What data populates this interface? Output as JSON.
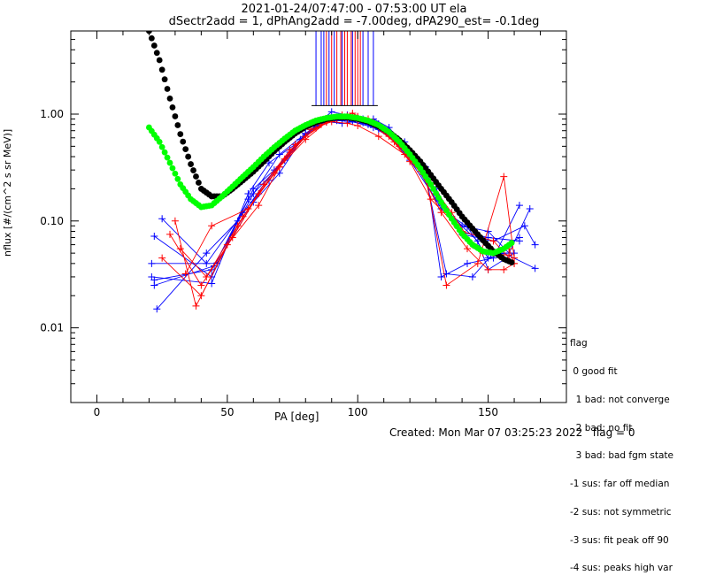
{
  "header": {
    "line1": "2021-01-24/07:47:00 - 07:53:00 UT ela",
    "line2": "dSectr2add = 1, dPhAng2add = -7.00deg, dPA290_est=  -0.1deg"
  },
  "footer": {
    "created": "Created: Mon Mar 07 03:25:23 2022",
    "flag": "flag = 0"
  },
  "legend": {
    "title": "flag",
    "items": [
      " 0 good fit",
      "  1 bad: not converge",
      "  2 bad: no fit",
      "  3 bad: bad fgm state",
      "-1 sus: far off median",
      "-2 sus: not symmetric",
      "-3 sus: fit peak off 90",
      "-4 sus: peaks high var"
    ]
  },
  "chart_data": {
    "type": "line",
    "title": "2021-01-24/07:47:00 - 07:53:00 UT ela",
    "subtitle": "dSectr2add = 1, dPhAng2add = -7.00deg, dPA290_est=  -0.1deg",
    "xlabel": "PA [deg]",
    "ylabel": "nflux [#/(cm^2 s sr MeV)]",
    "xlim": [
      -10,
      180
    ],
    "ylim": [
      0.002,
      6
    ],
    "yscale": "log",
    "xticks": [
      0,
      50,
      100,
      150
    ],
    "yticks": [
      0.01,
      0.1,
      1.0
    ],
    "yticklabels": [
      "0.01",
      "0.10",
      "1.00"
    ],
    "colors": {
      "red": "#ff0000",
      "blue": "#0000ff",
      "black": "#000000",
      "green": "#00ff00"
    },
    "fit_curves": [
      {
        "color": "black",
        "x": [
          20,
          24,
          28,
          32,
          36,
          40,
          44,
          48,
          52,
          56,
          60,
          64,
          68,
          72,
          76,
          80,
          84,
          88,
          92,
          96,
          100,
          104,
          108,
          112,
          116,
          120,
          124,
          128,
          132,
          136,
          140,
          144,
          148,
          152,
          156,
          160
        ],
        "y": [
          6.0,
          3.2,
          1.4,
          0.65,
          0.34,
          0.2,
          0.17,
          0.17,
          0.2,
          0.24,
          0.29,
          0.36,
          0.45,
          0.55,
          0.66,
          0.76,
          0.84,
          0.9,
          0.93,
          0.93,
          0.9,
          0.85,
          0.77,
          0.68,
          0.57,
          0.46,
          0.36,
          0.27,
          0.2,
          0.15,
          0.11,
          0.085,
          0.066,
          0.052,
          0.044,
          0.04
        ]
      },
      {
        "color": "green",
        "x": [
          20,
          24,
          28,
          32,
          36,
          40,
          44,
          48,
          52,
          56,
          60,
          64,
          68,
          72,
          76,
          80,
          84,
          88,
          92,
          96,
          100,
          104,
          108,
          112,
          116,
          120,
          124,
          128,
          132,
          136,
          140,
          144,
          148,
          152,
          156,
          160
        ],
        "y": [
          0.75,
          0.55,
          0.35,
          0.22,
          0.16,
          0.135,
          0.14,
          0.17,
          0.21,
          0.26,
          0.32,
          0.4,
          0.49,
          0.59,
          0.7,
          0.79,
          0.87,
          0.92,
          0.95,
          0.95,
          0.92,
          0.87,
          0.79,
          0.68,
          0.55,
          0.42,
          0.31,
          0.22,
          0.15,
          0.105,
          0.076,
          0.06,
          0.052,
          0.05,
          0.055,
          0.065
        ]
      }
    ],
    "series": [
      {
        "color": "blue",
        "x": [
          22,
          44,
          60,
          70,
          82,
          88,
          92,
          96,
          104,
          110,
          118,
          126,
          136,
          146,
          150,
          160
        ],
        "y": [
          0.028,
          0.035,
          0.18,
          0.42,
          0.72,
          0.85,
          0.88,
          0.86,
          0.8,
          0.7,
          0.48,
          0.28,
          0.11,
          0.065,
          0.035,
          0.05
        ]
      },
      {
        "color": "blue",
        "x": [
          22,
          44,
          58,
          72,
          84,
          90,
          94,
          98,
          102,
          108,
          116,
          124,
          132,
          140,
          150,
          162
        ],
        "y": [
          0.072,
          0.03,
          0.16,
          0.37,
          0.8,
          0.9,
          0.93,
          0.88,
          0.83,
          0.72,
          0.52,
          0.31,
          0.14,
          0.078,
          0.07,
          0.065
        ]
      },
      {
        "color": "blue",
        "x": [
          22,
          45,
          60,
          68,
          80,
          88,
          94,
          100,
          106,
          112,
          120,
          126,
          134,
          144,
          152,
          162
        ],
        "y": [
          0.025,
          0.038,
          0.2,
          0.3,
          0.65,
          0.85,
          0.82,
          0.86,
          0.9,
          0.75,
          0.44,
          0.26,
          0.032,
          0.03,
          0.05,
          0.07
        ]
      },
      {
        "color": "blue",
        "x": [
          25,
          42,
          56,
          66,
          78,
          86,
          92,
          98,
          104,
          112,
          120,
          130,
          140,
          150,
          158,
          166
        ],
        "y": [
          0.105,
          0.04,
          0.12,
          0.24,
          0.58,
          0.88,
          0.92,
          0.9,
          0.82,
          0.64,
          0.37,
          0.16,
          0.09,
          0.08,
          0.05,
          0.13
        ]
      },
      {
        "color": "blue",
        "x": [
          21,
          46,
          60,
          70,
          80,
          90,
          96,
          102,
          108,
          116,
          124,
          130,
          140,
          152,
          164,
          168
        ],
        "y": [
          0.04,
          0.04,
          0.15,
          0.28,
          0.66,
          0.92,
          0.95,
          0.9,
          0.81,
          0.57,
          0.31,
          0.2,
          0.075,
          0.065,
          0.09,
          0.06
        ]
      },
      {
        "color": "blue",
        "x": [
          23,
          42,
          54,
          64,
          74,
          84,
          92,
          98,
          106,
          114,
          122,
          132,
          142,
          150,
          156,
          168
        ],
        "y": [
          0.015,
          0.05,
          0.1,
          0.22,
          0.44,
          0.78,
          0.87,
          0.85,
          0.75,
          0.58,
          0.34,
          0.13,
          0.088,
          0.045,
          0.05,
          0.036
        ]
      },
      {
        "color": "blue",
        "x": [
          21,
          44,
          58,
          66,
          76,
          86,
          90,
          96,
          104,
          112,
          118,
          126,
          132,
          142,
          152,
          162
        ],
        "y": [
          0.03,
          0.026,
          0.18,
          0.35,
          0.52,
          0.88,
          1.05,
          0.98,
          0.82,
          0.65,
          0.55,
          0.32,
          0.03,
          0.04,
          0.045,
          0.14
        ]
      },
      {
        "color": "red",
        "x": [
          28,
          40,
          52,
          62,
          72,
          82,
          90,
          96,
          100,
          108,
          118,
          128,
          136,
          144,
          152,
          156
        ],
        "y": [
          0.075,
          0.025,
          0.07,
          0.18,
          0.38,
          0.72,
          0.85,
          0.82,
          0.78,
          0.62,
          0.42,
          0.22,
          0.12,
          0.06,
          0.05,
          0.045
        ]
      },
      {
        "color": "red",
        "x": [
          25,
          40,
          54,
          64,
          74,
          84,
          92,
          98,
          104,
          110,
          118,
          126,
          134,
          146,
          156,
          160
        ],
        "y": [
          0.045,
          0.02,
          0.09,
          0.22,
          0.46,
          0.74,
          0.92,
          0.98,
          0.9,
          0.72,
          0.48,
          0.26,
          0.025,
          0.04,
          0.26,
          0.045
        ]
      },
      {
        "color": "red",
        "x": [
          30,
          38,
          50,
          62,
          70,
          80,
          88,
          94,
          100,
          106,
          112,
          120,
          128,
          138,
          148,
          158
        ],
        "y": [
          0.1,
          0.016,
          0.06,
          0.14,
          0.32,
          0.58,
          0.84,
          0.98,
          0.95,
          0.8,
          0.62,
          0.36,
          0.16,
          0.09,
          0.05,
          0.048
        ]
      },
      {
        "color": "red",
        "x": [
          32,
          42,
          56,
          68,
          76,
          86,
          92,
          98,
          104,
          114,
          122,
          130,
          140,
          152,
          160,
          158
        ],
        "y": [
          0.055,
          0.03,
          0.11,
          0.28,
          0.52,
          0.8,
          0.9,
          1.02,
          0.86,
          0.55,
          0.35,
          0.18,
          0.08,
          0.065,
          0.04,
          0.055
        ]
      },
      {
        "color": "red",
        "x": [
          34,
          44,
          58,
          70,
          80,
          90,
          96,
          100,
          106,
          116,
          124,
          132,
          142,
          150,
          156,
          160
        ],
        "y": [
          0.032,
          0.09,
          0.13,
          0.32,
          0.62,
          0.9,
          0.96,
          0.94,
          0.84,
          0.5,
          0.29,
          0.12,
          0.055,
          0.035,
          0.035,
          0.04
        ]
      }
    ],
    "pa_lines": {
      "red": [
        88,
        90,
        92,
        93.5,
        95,
        96,
        97.5,
        99,
        100,
        101
      ],
      "blue": [
        84,
        86,
        87,
        89,
        91,
        94,
        98,
        102,
        104,
        106
      ]
    }
  }
}
